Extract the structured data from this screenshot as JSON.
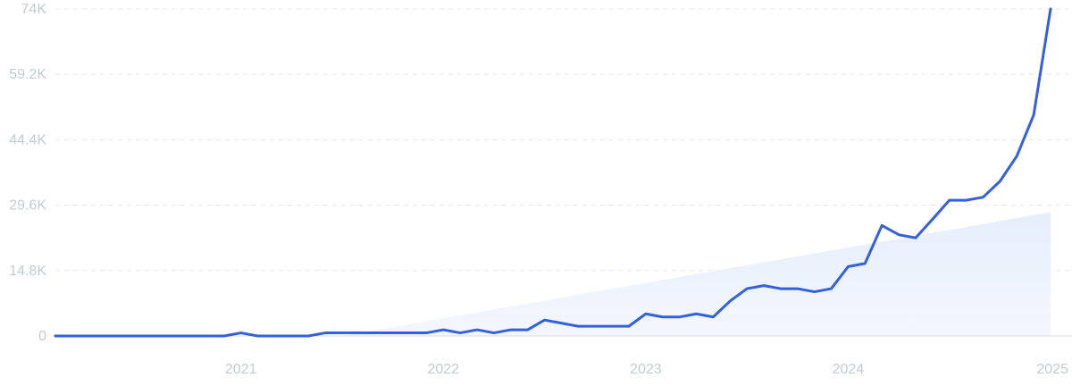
{
  "chart_data": {
    "type": "line",
    "title": "",
    "xlabel": "",
    "ylabel": "",
    "ylim": [
      0,
      74000
    ],
    "xlim": [
      "2020-02",
      "2025-01"
    ],
    "grid": true,
    "legend": "none",
    "y_ticks": [
      {
        "value": 0,
        "label": "0"
      },
      {
        "value": 14800,
        "label": "14.8K"
      },
      {
        "value": 29600,
        "label": "29.6K"
      },
      {
        "value": 44400,
        "label": "44.4K"
      },
      {
        "value": 59200,
        "label": "59.2K"
      },
      {
        "value": 74000,
        "label": "74K"
      }
    ],
    "x_ticks": [
      {
        "value": "2021-01",
        "label": "2021"
      },
      {
        "value": "2022-01",
        "label": "2022"
      },
      {
        "value": "2023-01",
        "label": "2023"
      },
      {
        "value": "2024-01",
        "label": "2024"
      },
      {
        "value": "2025-01",
        "label": "2025"
      }
    ],
    "x": [
      "2020-02",
      "2020-03",
      "2020-04",
      "2020-05",
      "2020-06",
      "2020-07",
      "2020-08",
      "2020-09",
      "2020-10",
      "2020-11",
      "2020-12",
      "2021-01",
      "2021-02",
      "2021-03",
      "2021-04",
      "2021-05",
      "2021-06",
      "2021-07",
      "2021-08",
      "2021-09",
      "2021-10",
      "2021-11",
      "2021-12",
      "2022-01",
      "2022-02",
      "2022-03",
      "2022-04",
      "2022-05",
      "2022-06",
      "2022-07",
      "2022-08",
      "2022-09",
      "2022-10",
      "2022-11",
      "2022-12",
      "2023-01",
      "2023-02",
      "2023-03",
      "2023-04",
      "2023-05",
      "2023-06",
      "2023-07",
      "2023-08",
      "2023-09",
      "2023-10",
      "2023-11",
      "2023-12",
      "2024-01",
      "2024-02",
      "2024-03",
      "2024-04",
      "2024-05",
      "2024-06",
      "2024-07",
      "2024-08",
      "2024-09",
      "2024-10",
      "2024-11",
      "2024-12",
      "2025-01"
    ],
    "series": [
      {
        "color": "#3360dd",
        "values": [
          0,
          0,
          0,
          0,
          0,
          0,
          0,
          0,
          0,
          0,
          0,
          700,
          0,
          0,
          0,
          0,
          700,
          700,
          700,
          700,
          700,
          700,
          700,
          1400,
          700,
          1400,
          700,
          1400,
          1400,
          3600,
          2900,
          2200,
          2200,
          2200,
          2200,
          5000,
          4300,
          4300,
          5000,
          4300,
          7900,
          10700,
          11400,
          10700,
          10700,
          10000,
          10700,
          15700,
          16400,
          25000,
          22900,
          22200,
          26400,
          30700,
          30700,
          31400,
          35000,
          40700,
          50000,
          74000
        ]
      }
    ],
    "trend_fill": {
      "color": "#eaf1fc",
      "start": {
        "x": "2021-07",
        "y": 0
      },
      "end": {
        "x": "2025-01",
        "y": 28000
      }
    },
    "colors": {
      "line": "#3360dd",
      "grid": "#e4e7ee",
      "baseline": "#d7dce6",
      "tick_text": "#c4c9d4"
    }
  }
}
